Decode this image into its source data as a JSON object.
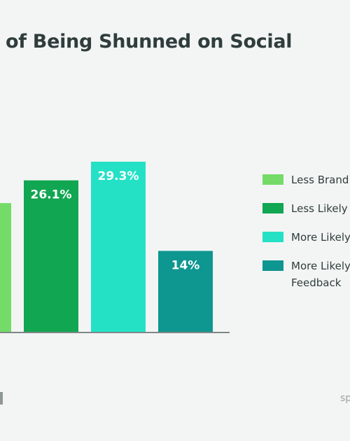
{
  "title": "of Being Shunned on Social",
  "footer": {
    "right_text": "sp"
  },
  "chart_data": {
    "type": "bar",
    "categories": [
      "Less Brand",
      "Less Likely",
      "More Likely",
      "More Likely Feedback"
    ],
    "values": [
      22.2,
      26.1,
      29.3,
      14
    ],
    "value_labels": [
      "%",
      "26.1%",
      "29.3%",
      "14%"
    ],
    "colors": [
      "#74db68",
      "#11a651",
      "#24e1c6",
      "#0e9690"
    ],
    "ylim": [
      0,
      35
    ],
    "legend": [
      {
        "lines": [
          "Less Brand"
        ],
        "color": "#74db68"
      },
      {
        "lines": [
          "Less Likely"
        ],
        "color": "#11a651"
      },
      {
        "lines": [
          "More Likely"
        ],
        "color": "#24e1c6"
      },
      {
        "lines": [
          "More Likely",
          "Feedback"
        ],
        "color": "#0e9690"
      }
    ],
    "legend_position": "right",
    "grid": false
  }
}
